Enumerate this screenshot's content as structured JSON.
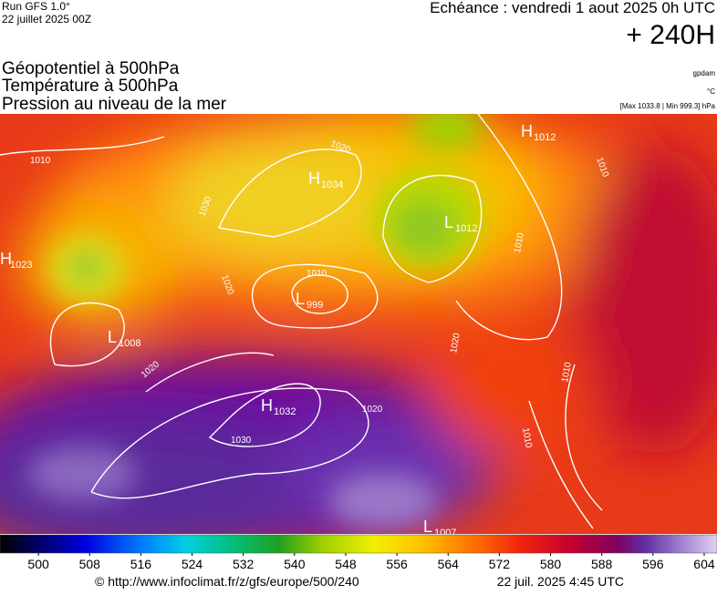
{
  "header": {
    "run": "Run GFS 1.0°",
    "run_date": "22 juillet 2025 00Z",
    "echeance": "Echéance : vendredi 1 aout 2025 0h UTC",
    "lead": "+ 240H",
    "titles": [
      "Géopotentiel à 500hPa",
      "Température à 500hPa",
      "Pression au niveau de la mer"
    ],
    "units": [
      "gpdam",
      "°C",
      "[Max 1033.8 | Min 999.3] hPa"
    ]
  },
  "centers": [
    {
      "type": "H",
      "value": "1023"
    },
    {
      "type": "L",
      "value": "1008"
    },
    {
      "type": "H",
      "value": "1034"
    },
    {
      "type": "L",
      "value": "999"
    },
    {
      "type": "L",
      "value": "1012"
    },
    {
      "type": "H",
      "value": "1032"
    },
    {
      "type": "H",
      "value": "1012"
    },
    {
      "type": "L",
      "value": "1007"
    }
  ],
  "isobar_labels": [
    "1010",
    "1010",
    "1010",
    "1010",
    "1010",
    "1010",
    "1020",
    "1020",
    "1020",
    "1020",
    "1020",
    "1030"
  ],
  "colorbar": {
    "range": [
      494,
      606
    ],
    "ticks": [
      500,
      508,
      516,
      524,
      532,
      540,
      548,
      556,
      564,
      572,
      580,
      588,
      596,
      604
    ]
  },
  "footer": {
    "url": "© http://www.infoclimat.fr/z/gfs/europe/500/240",
    "stamp": "22 juil. 2025  4:45 UTC"
  }
}
